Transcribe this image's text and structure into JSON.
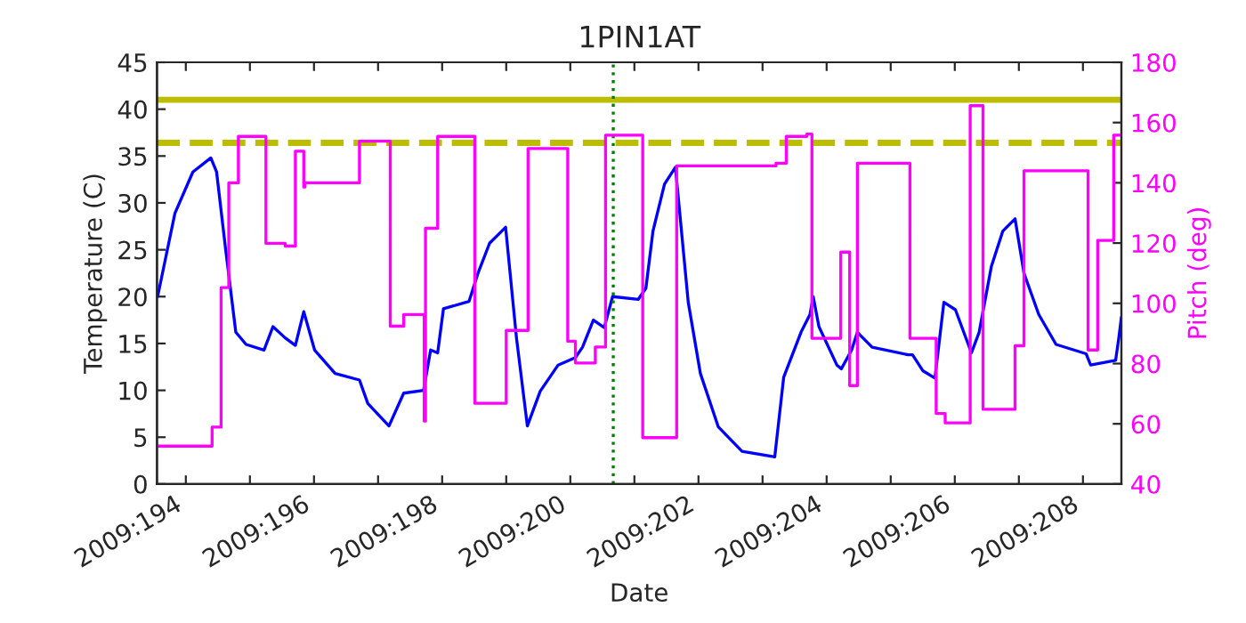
{
  "chart_data": {
    "type": "line",
    "title": "1PIN1AT",
    "xlabel": "Date",
    "ylabel": "Temperature (C)",
    "y2label": "Pitch (deg)",
    "xlim": [
      "2009-07-12T13:12",
      "2009-07-27T14:24"
    ],
    "xticks": [
      {
        "value": "2009-07-13",
        "label": "2009:194"
      },
      {
        "value": "2009-07-14",
        "label": null
      },
      {
        "value": "2009-07-15",
        "label": "2009:196"
      },
      {
        "value": "2009-07-16",
        "label": null
      },
      {
        "value": "2009-07-17",
        "label": "2009:198"
      },
      {
        "value": "2009-07-18",
        "label": null
      },
      {
        "value": "2009-07-19",
        "label": "2009:200"
      },
      {
        "value": "2009-07-20",
        "label": null
      },
      {
        "value": "2009-07-21",
        "label": "2009:202"
      },
      {
        "value": "2009-07-22",
        "label": null
      },
      {
        "value": "2009-07-23",
        "label": "2009:204"
      },
      {
        "value": "2009-07-24",
        "label": null
      },
      {
        "value": "2009-07-25",
        "label": "2009:206"
      },
      {
        "value": "2009-07-26",
        "label": null
      },
      {
        "value": "2009-07-27",
        "label": "2009:208"
      }
    ],
    "ylim": [
      0,
      45
    ],
    "yticks": [
      0,
      5,
      10,
      15,
      20,
      25,
      30,
      35,
      40,
      45
    ],
    "y2lim": [
      40,
      180
    ],
    "y2ticks": [
      40,
      60,
      80,
      100,
      120,
      140,
      160,
      180
    ],
    "grid": false,
    "series": [
      {
        "color": "#0000ff",
        "x": [
          "2009-07-12T13:26",
          "2009-07-12T19:55",
          "2009-07-13T02:38",
          "2009-07-13T09:22",
          "2009-07-13T11:31",
          "2009-07-13T14:53",
          "2009-07-13T18:43",
          "2009-07-13T22:34",
          "2009-07-14T05:17",
          "2009-07-14T08:38",
          "2009-07-14T13:12",
          "2009-07-14T17:02",
          "2009-07-14T20:10",
          "2009-07-15T00:14",
          "2009-07-15T07:55",
          "2009-07-15T17:02",
          "2009-07-15T20:10",
          "2009-07-16T04:05",
          "2009-07-16T09:36",
          "2009-07-16T17:02",
          "2009-07-16T19:41",
          "2009-07-16T22:19",
          "2009-07-17T00:29",
          "2009-07-17T10:05",
          "2009-07-17T13:26",
          "2009-07-17T17:46",
          "2009-07-17T23:46",
          "2009-07-18T03:50",
          "2009-07-18T07:55",
          "2009-07-18T12:43",
          "2009-07-18T19:26",
          "2009-07-19T01:55",
          "2009-07-19T04:34",
          "2009-07-19T08:38",
          "2009-07-19T12:43",
          "2009-07-19T15:50",
          "2009-07-20T01:26",
          "2009-07-20T04:19",
          "2009-07-20T06:58",
          "2009-07-20T11:17",
          "2009-07-20T15:22",
          "2009-07-20T20:10",
          "2009-07-21T00:43",
          "2009-07-21T07:26",
          "2009-07-21T16:19",
          "2009-07-22T04:34",
          "2009-07-22T07:55",
          "2009-07-22T14:24",
          "2009-07-22T17:46",
          "2009-07-22T18:58",
          "2009-07-22T21:07",
          "2009-07-23T03:50",
          "2009-07-23T05:31",
          "2009-07-23T09:22",
          "2009-07-23T11:31",
          "2009-07-23T17:02",
          "2009-07-24T06:29",
          "2009-07-24T08:10",
          "2009-07-24T12:00",
          "2009-07-24T16:34",
          "2009-07-24T19:55",
          "2009-07-25T00:14",
          "2009-07-25T06:14",
          "2009-07-25T09:07",
          "2009-07-25T13:41",
          "2009-07-25T18:00",
          "2009-07-25T22:34",
          "2009-07-26T01:55",
          "2009-07-26T07:26",
          "2009-07-26T13:55",
          "2009-07-27T01:12",
          "2009-07-27T02:53",
          "2009-07-27T12:14",
          "2009-07-27T13:26",
          "2009-07-27T14:24"
        ],
        "values": [
          20.0,
          28.9,
          33.3,
          34.8,
          33.3,
          25.1,
          16.2,
          14.9,
          14.3,
          16.8,
          15.6,
          14.8,
          18.4,
          14.3,
          11.8,
          11.1,
          8.6,
          6.2,
          9.7,
          10.0,
          14.3,
          14.0,
          18.7,
          19.5,
          22.5,
          25.7,
          27.4,
          15.6,
          6.2,
          9.9,
          12.7,
          13.5,
          14.6,
          17.5,
          16.7,
          20.0,
          19.7,
          20.9,
          27.0,
          32.0,
          33.8,
          19.4,
          11.8,
          6.1,
          3.5,
          2.9,
          11.4,
          16.2,
          18.1,
          20.0,
          16.8,
          12.7,
          12.3,
          14.3,
          16.2,
          14.6,
          13.8,
          13.8,
          12.1,
          11.3,
          19.4,
          18.6,
          14.0,
          16.2,
          23.2,
          27.0,
          28.3,
          22.5,
          18.1,
          14.9,
          13.9,
          12.7,
          13.2,
          15.6,
          17.8
        ]
      },
      {
        "type": "step",
        "axis": "y2",
        "color": "#ff00ff",
        "x": [
          "2009-07-12T13:12",
          "2009-07-13T09:50",
          "2009-07-13T13:12",
          "2009-07-13T16:05",
          "2009-07-13T19:41",
          "2009-07-14T06:00",
          "2009-07-14T13:12",
          "2009-07-14T17:02",
          "2009-07-14T20:10",
          "2009-07-14T20:38",
          "2009-07-15T17:02",
          "2009-07-16T04:34",
          "2009-07-16T09:36",
          "2009-07-16T17:17",
          "2009-07-16T17:46",
          "2009-07-16T22:19",
          "2009-07-17T12:14",
          "2009-07-18T00:00",
          "2009-07-18T08:10",
          "2009-07-18T23:02",
          "2009-07-19T01:55",
          "2009-07-19T09:22",
          "2009-07-19T13:12",
          "2009-07-20T03:07",
          "2009-07-20T15:50",
          "2009-07-22T05:02",
          "2009-07-22T08:53",
          "2009-07-22T16:34",
          "2009-07-22T18:29",
          "2009-07-23T05:17",
          "2009-07-23T08:38",
          "2009-07-23T11:31",
          "2009-07-24T07:12",
          "2009-07-24T17:02",
          "2009-07-24T20:24",
          "2009-07-25T05:46",
          "2009-07-25T10:34",
          "2009-07-25T22:34",
          "2009-07-26T01:55",
          "2009-07-27T01:55",
          "2009-07-27T05:31",
          "2009-07-27T11:31",
          "2009-07-27T14:24"
        ],
        "values": [
          52.6,
          58.9,
          105.2,
          140.0,
          155.4,
          119.9,
          119.0,
          150.5,
          138.6,
          140.0,
          153.8,
          92.4,
          96.3,
          60.9,
          124.9,
          155.4,
          66.8,
          91.0,
          151.4,
          87.4,
          80.2,
          85.5,
          155.8,
          55.4,
          145.6,
          146.5,
          155.4,
          156.2,
          88.4,
          117.0,
          72.7,
          146.5,
          88.4,
          63.4,
          60.3,
          165.6,
          64.8,
          85.9,
          144.0,
          84.5,
          120.9,
          155.8,
          155.8
        ]
      }
    ],
    "ref_lines": [
      {
        "axis": "y",
        "value": 41,
        "color": "#bcbc00",
        "line_style": "solid"
      },
      {
        "axis": "y",
        "value": 36.4,
        "color": "#bcbc00",
        "line_style": "dashed"
      },
      {
        "axis": "x",
        "value": "2009-07-19T16:05",
        "color": "#008000",
        "line_style": "dotted"
      }
    ]
  }
}
